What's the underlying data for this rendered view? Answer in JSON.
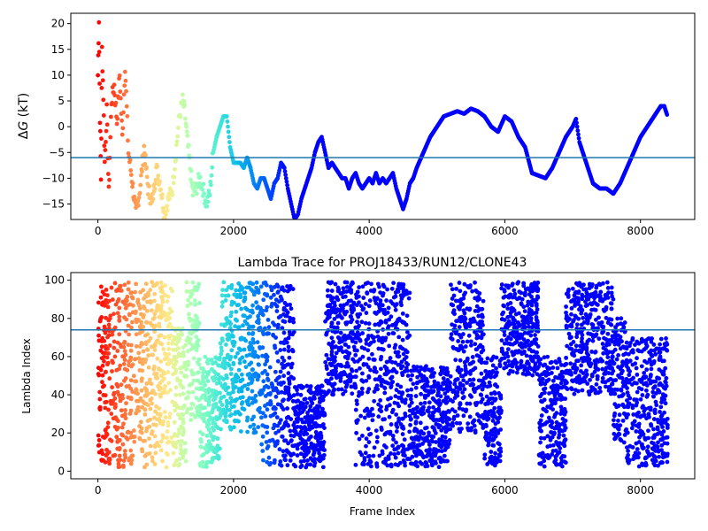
{
  "chart_data": [
    {
      "type": "scatter",
      "title": "",
      "xlabel": "",
      "ylabel": "ΔG (kT)",
      "ylabel_parts": {
        "symbol": "Δ",
        "italic": "G",
        "rest": " (kT)"
      },
      "xlim": [
        -400,
        8800
      ],
      "ylim": [
        -18,
        22
      ],
      "xticks": [
        0,
        2000,
        4000,
        6000,
        8000
      ],
      "xtick_labels": [
        "0",
        "2000",
        "4000",
        "6000",
        "8000"
      ],
      "yticks": [
        -15,
        -10,
        -5,
        0,
        5,
        10,
        15,
        20
      ],
      "ytick_labels": [
        "−15",
        "−10",
        "−5",
        "0",
        "5",
        "10",
        "15",
        "20"
      ],
      "hline": -6,
      "hline_color": "#1f77b4",
      "colormap": "rainbow (early frames red → late frames violet)",
      "grid": false,
      "series": [
        {
          "x": [
            0,
            15,
            30,
            45,
            60,
            80,
            100,
            130,
            160,
            200,
            240,
            280,
            320,
            360,
            400,
            450,
            500,
            560,
            620,
            680,
            740,
            800,
            860,
            920,
            980,
            1040,
            1100,
            1150,
            1200,
            1250,
            1280,
            1320,
            1360,
            1400,
            1450,
            1500,
            1550,
            1600,
            1650,
            1700,
            1750,
            1800,
            1850,
            1900,
            1950,
            2000,
            2050,
            2100,
            2150,
            2200,
            2250,
            2300,
            2350,
            2400,
            2450,
            2500,
            2550,
            2600,
            2650,
            2700,
            2750,
            2800,
            2850,
            2900,
            2950,
            3000,
            3050,
            3100,
            3150,
            3200,
            3250,
            3300,
            3350,
            3400,
            3450,
            3500,
            3550,
            3600,
            3650,
            3700,
            3750,
            3800,
            3850,
            3900,
            3950,
            4000,
            4050,
            4100,
            4150,
            4200,
            4250,
            4300,
            4350,
            4400,
            4450,
            4500,
            4550,
            4600,
            4650,
            4700,
            4800,
            4900,
            5000,
            5100,
            5200,
            5300,
            5400,
            5500,
            5600,
            5700,
            5800,
            5900,
            6000,
            6100,
            6200,
            6300,
            6400,
            6500,
            6600,
            6700,
            6800,
            6900,
            7000,
            7050,
            7100,
            7200,
            7300,
            7400,
            7500,
            7600,
            7700,
            7800,
            7900,
            8000,
            8100,
            8200,
            8300,
            8350,
            8400
          ],
          "y": [
            10,
            21,
            2,
            -10,
            15,
            6,
            -7,
            3,
            -13,
            5,
            8,
            1,
            10,
            -2,
            12,
            -5,
            -10,
            -17,
            -12,
            -4,
            -12,
            -15,
            -8,
            -11,
            -17,
            -14,
            -12,
            -5,
            2,
            5,
            3,
            -3,
            -8,
            -13,
            -12,
            -10,
            -12,
            -15,
            -13,
            -5,
            -2,
            0,
            2,
            2,
            -4,
            -7,
            -7,
            -7,
            -8,
            -6,
            -8,
            -11,
            -12,
            -10,
            -10,
            -12,
            -14,
            -11,
            -10,
            -7,
            -8,
            -12,
            -15,
            -18,
            -17,
            -14,
            -12,
            -10,
            -8,
            -5,
            -3,
            -2,
            -5,
            -8,
            -7,
            -8,
            -9,
            -10,
            -10,
            -12,
            -10,
            -9,
            -11,
            -12,
            -11,
            -10,
            -11,
            -9,
            -11,
            -10,
            -11,
            -10,
            -9,
            -12,
            -14,
            -16,
            -14,
            -11,
            -10,
            -8,
            -5,
            -2,
            0,
            2,
            2.5,
            3,
            2.5,
            3.5,
            3,
            2,
            0,
            -1,
            2,
            1,
            -2,
            -4,
            -9,
            -9.5,
            -10,
            -8,
            -5,
            -2,
            0,
            1.5,
            -3,
            -7,
            -11,
            -12,
            -12,
            -13,
            -11,
            -8,
            -5,
            -2,
            0,
            2,
            4,
            4,
            2
          ]
        }
      ]
    },
    {
      "type": "scatter",
      "title": "Lambda Trace for PROJ18433/RUN12/CLONE43",
      "xlabel": "Frame Index",
      "ylabel": "Lambda Index",
      "xlim": [
        -400,
        8800
      ],
      "ylim": [
        -4,
        104
      ],
      "xticks": [
        0,
        2000,
        4000,
        6000,
        8000
      ],
      "xtick_labels": [
        "0",
        "2000",
        "4000",
        "6000",
        "8000"
      ],
      "yticks": [
        0,
        20,
        40,
        60,
        80,
        100
      ],
      "ytick_labels": [
        "0",
        "20",
        "40",
        "60",
        "80",
        "100"
      ],
      "hline": 74,
      "hline_color": "#1f77b4",
      "colormap": "rainbow (early frames red → late frames violet)",
      "grid": false,
      "series": [
        {
          "segments": [
            {
              "x": [
                0,
                80
              ],
              "y": [
                5,
                99
              ]
            },
            {
              "x": [
                80,
                400
              ],
              "y": [
                2,
                99
              ]
            },
            {
              "x": [
                400,
                1100
              ],
              "y": [
                2,
                99
              ]
            },
            {
              "x": [
                1100,
                1300
              ],
              "y": [
                2,
                75
              ]
            },
            {
              "x": [
                1300,
                1500
              ],
              "y": [
                25,
                99
              ]
            },
            {
              "x": [
                1500,
                1800
              ],
              "y": [
                2,
                60
              ]
            },
            {
              "x": [
                1800,
                2400
              ],
              "y": [
                20,
                99
              ]
            },
            {
              "x": [
                2400,
                2900
              ],
              "y": [
                2,
                99
              ]
            },
            {
              "x": [
                2900,
                3350
              ],
              "y": [
                2,
                45
              ]
            },
            {
              "x": [
                3350,
                3800
              ],
              "y": [
                40,
                99
              ]
            },
            {
              "x": [
                3800,
                4600
              ],
              "y": [
                2,
                99
              ]
            },
            {
              "x": [
                4600,
                5200
              ],
              "y": [
                2,
                55
              ]
            },
            {
              "x": [
                5200,
                5700
              ],
              "y": [
                20,
                99
              ]
            },
            {
              "x": [
                5700,
                5950
              ],
              "y": [
                2,
                60
              ]
            },
            {
              "x": [
                5950,
                6500
              ],
              "y": [
                50,
                99
              ]
            },
            {
              "x": [
                6500,
                6900
              ],
              "y": [
                2,
                60
              ]
            },
            {
              "x": [
                6900,
                7600
              ],
              "y": [
                40,
                99
              ]
            },
            {
              "x": [
                7600,
                7800
              ],
              "y": [
                15,
                80
              ]
            },
            {
              "x": [
                7800,
                8400
              ],
              "y": [
                2,
                70
              ]
            }
          ]
        }
      ]
    }
  ]
}
